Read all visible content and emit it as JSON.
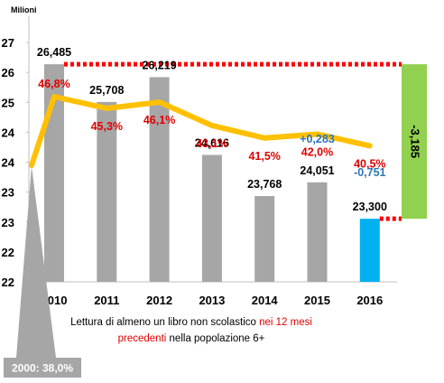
{
  "chart_data": {
    "type": "bar",
    "y_unit_label": "Milioni",
    "y_tick_labels": [
      "27",
      "26",
      "25",
      "24",
      "24",
      "23",
      "23",
      "22",
      "22"
    ],
    "categories": [
      "2010",
      "2011",
      "2012",
      "2013",
      "2014",
      "2015",
      "2016"
    ],
    "series": [
      {
        "values": [
          26.485,
          25.708,
          26.219,
          24.616,
          23.768,
          24.051,
          23.3
        ],
        "labels": [
          "26,485",
          "25,708",
          "26,219",
          "24,616",
          "23,768",
          "24,051",
          "23,300"
        ],
        "colors": [
          "#a6a6a6",
          "#a6a6a6",
          "#a6a6a6",
          "#a6a6a6",
          "#a6a6a6",
          "#a6a6a6",
          "#00b0f0"
        ]
      },
      {
        "values": [
          46.8,
          45.3,
          46.1,
          43.1,
          41.5,
          42.0,
          40.5
        ],
        "labels": [
          "46,8%",
          "45,3%",
          "46,1%",
          "43,1%",
          "41,5%",
          "42,0%",
          "40,5%"
        ],
        "color": "#ffc000"
      }
    ],
    "annotations": {
      "change_2015": "+0,283",
      "change_2016": "-0,751",
      "total_change": "-3,185",
      "callout_2000": "2000: 38,0%"
    },
    "footnote": {
      "part1": "Lettura di almeno un libro non scolastico ",
      "part2": "nei 12 mesi",
      "part3": "precedenti",
      "part4": " nella popolazione 6+"
    },
    "colors": {
      "bar": "#a6a6a6",
      "bar_highlight": "#00b0f0",
      "line": "#ffc000",
      "pct_label": "#e00000",
      "change_label": "#2e75b6",
      "change_box": "#92d050",
      "dotted_line": "#ff0000",
      "callout": "#a6a6a6"
    }
  }
}
